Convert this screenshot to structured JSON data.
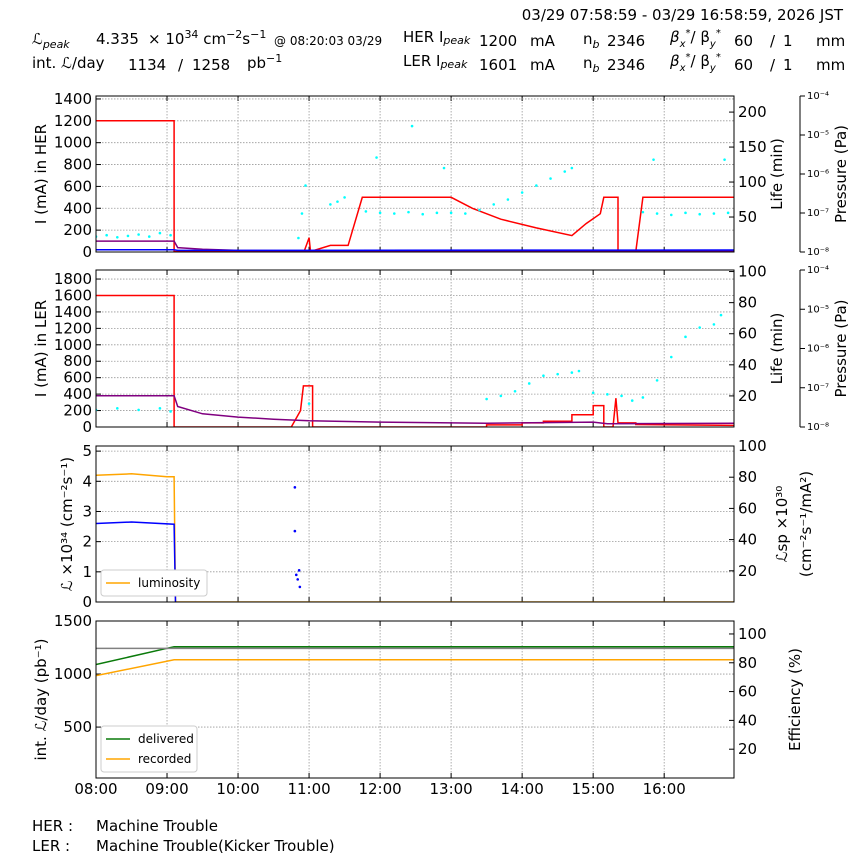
{
  "header": {
    "timespan": "03/29 07:58:59 - 03/29 16:58:59, 2026 JST",
    "lpeak": {
      "symbol": "ℒ",
      "sub": "peak",
      "value": 4.335,
      "unit": [
        "× 10",
        "34",
        " cm",
        "−2",
        "s",
        "−1"
      ],
      "time": "@ 08:20:03 03/29"
    },
    "int_lumi": {
      "label": "int. ℒ/day",
      "value": 1134,
      "sep": "/",
      "value2": 1258,
      "unit": [
        "pb",
        "−1"
      ]
    },
    "her": {
      "label": "HER I",
      "sub": "peak",
      "current": 1200,
      "unit": "mA",
      "nb": [
        "n",
        "b"
      ],
      "bunches": 2346,
      "beta": [
        "β",
        "x",
        "*",
        "/ β",
        "y",
        "*"
      ],
      "beta_x": 60,
      "slash": "/",
      "beta_y": 1,
      "beta_unit": "mm"
    },
    "ler": {
      "label": "LER I",
      "sub": "peak",
      "current": 1601,
      "unit": "mA",
      "nb": [
        "n",
        "b"
      ],
      "bunches": 2346,
      "beta": [
        "β",
        "x",
        "*",
        "/ β",
        "y",
        "*"
      ],
      "beta_x": 60,
      "slash": "/",
      "beta_y": 1,
      "beta_unit": "mm"
    }
  },
  "chart_data": [
    {
      "type": "line",
      "ylabel": "I (mA) in HER",
      "y2label": "Life (min)",
      "y3label": "Pressure (Pa)",
      "grid": true,
      "xlim": [
        8,
        16.983
      ],
      "xticks": [
        8,
        9,
        10,
        11,
        12,
        13,
        14,
        15,
        16
      ],
      "ylim": [
        0,
        1427
      ],
      "yticks": [
        0,
        200,
        400,
        600,
        800,
        1000,
        1200,
        1400
      ],
      "y2lim": [
        0,
        223
      ],
      "y2ticks": [
        50,
        100,
        150,
        200
      ],
      "y3lim": [
        1e-08,
        0.0001
      ],
      "y3scale": "log",
      "y3ticks": [
        {
          "value": 1e-08,
          "label": "10⁻⁸"
        },
        {
          "value": 1e-07,
          "label": "10⁻⁷"
        },
        {
          "value": 1e-06,
          "label": "10⁻⁶"
        },
        {
          "value": 1e-05,
          "label": "10⁻⁵"
        },
        {
          "value": 0.0001,
          "label": "10⁻⁴"
        }
      ],
      "series": [
        {
          "type": "line",
          "color": "#ff0000",
          "x": [
            8,
            9.1,
            9.1,
            10.93,
            11.0,
            11.02,
            11.3,
            11.55,
            11.75,
            13.0,
            13.3,
            13.7,
            14.2,
            14.7,
            14.9,
            15.1,
            15.15,
            15.35,
            15.35,
            15.6,
            15.7,
            16.98
          ],
          "values": [
            1200,
            1200,
            5,
            5,
            130,
            5,
            60,
            60,
            500,
            500,
            400,
            300,
            220,
            150,
            260,
            350,
            500,
            500,
            5,
            5,
            500,
            500
          ]
        },
        {
          "type": "line",
          "color": "#800080",
          "x": [
            8,
            9.1,
            9.15,
            9.5,
            10,
            11,
            13,
            16.98
          ],
          "values": [
            100,
            100,
            40,
            25,
            15,
            12,
            12,
            12
          ]
        },
        {
          "type": "line",
          "color": "#0000ff",
          "x": [
            8,
            9.1,
            9.15,
            16.98
          ],
          "values": [
            20,
            20,
            15,
            18
          ]
        },
        {
          "type": "scatter",
          "axis": "y2",
          "color": "#00ffff",
          "x": [
            8.0,
            8.15,
            8.3,
            8.45,
            8.6,
            8.75,
            8.9,
            9.05,
            10.85,
            10.9,
            10.95,
            11.3,
            11.4,
            11.5,
            11.8,
            12.0,
            12.2,
            12.4,
            12.6,
            12.8,
            13.0,
            13.2,
            13.4,
            13.6,
            13.8,
            14.0,
            14.2,
            14.4,
            14.6,
            14.7,
            15.7,
            15.9,
            16.1,
            16.3,
            16.5,
            16.7,
            16.9,
            11.95,
            12.45,
            12.9,
            15.85,
            16.85
          ],
          "values": [
            22,
            24,
            21,
            23,
            25,
            22,
            27,
            24,
            20,
            55,
            95,
            68,
            72,
            78,
            58,
            56,
            55,
            57,
            54,
            56,
            56,
            55,
            60,
            68,
            75,
            85,
            95,
            105,
            115,
            120,
            57,
            55,
            53,
            56,
            54,
            55,
            56,
            135,
            180,
            120,
            132,
            132
          ]
        }
      ]
    },
    {
      "type": "line",
      "ylabel": "I (mA) in LER",
      "y2label": "Life (min)",
      "y3label": "Pressure (Pa)",
      "grid": true,
      "xlim": [
        8,
        16.983
      ],
      "xticks": [
        8,
        9,
        10,
        11,
        12,
        13,
        14,
        15,
        16
      ],
      "ylim": [
        0,
        1910
      ],
      "yticks": [
        0,
        200,
        400,
        600,
        800,
        1000,
        1200,
        1400,
        1600,
        1800
      ],
      "y2lim": [
        0,
        101
      ],
      "y2ticks": [
        20,
        40,
        60,
        80,
        100
      ],
      "y3lim": [
        1e-08,
        0.0001
      ],
      "y3scale": "log",
      "y3ticks": [
        {
          "value": 1e-08,
          "label": "10⁻⁸"
        },
        {
          "value": 1e-07,
          "label": "10⁻⁷"
        },
        {
          "value": 1e-06,
          "label": "10⁻⁶"
        },
        {
          "value": 1e-05,
          "label": "10⁻⁵"
        },
        {
          "value": 0.0001,
          "label": "10⁻⁴"
        }
      ],
      "series": [
        {
          "type": "line",
          "color": "#ff0000",
          "x": [
            8,
            9.1,
            9.1,
            10.75,
            10.88,
            10.92,
            11.05,
            11.05,
            13.5,
            13.5,
            14.0,
            14.0,
            14.3,
            14.3,
            14.7,
            14.7,
            15.0,
            15.0,
            15.15,
            15.15,
            15.28,
            15.32,
            15.35,
            15.6,
            15.6,
            16.98
          ],
          "values": [
            1600,
            1600,
            0,
            0,
            200,
            500,
            500,
            0,
            0,
            25,
            25,
            50,
            50,
            70,
            70,
            150,
            150,
            260,
            260,
            0,
            0,
            350,
            50,
            50,
            30,
            20
          ]
        },
        {
          "type": "line",
          "color": "#800080",
          "x": [
            8,
            9.1,
            9.15,
            9.5,
            10,
            10.5,
            11,
            12,
            13.5,
            15,
            15.2,
            16.98
          ],
          "values": [
            380,
            380,
            250,
            160,
            120,
            95,
            75,
            60,
            45,
            60,
            40,
            45
          ]
        },
        {
          "type": "scatter",
          "axis": "y2",
          "color": "#00ffff",
          "x": [
            8.0,
            8.3,
            8.6,
            8.9,
            9.05,
            11.0,
            13.5,
            13.7,
            13.9,
            14.1,
            14.3,
            14.5,
            14.7,
            14.8,
            15.0,
            15.2,
            15.4,
            15.55,
            15.7,
            15.9,
            16.1,
            16.3,
            16.5,
            16.7,
            16.8
          ],
          "values": [
            11,
            12,
            11,
            12,
            10,
            15,
            18,
            20,
            23,
            28,
            33,
            34,
            35,
            36,
            22,
            21,
            20,
            17,
            19,
            30,
            45,
            58,
            64,
            66,
            72
          ]
        }
      ]
    },
    {
      "type": "line",
      "ylabel": "ℒ ×10³⁴ (cm⁻²s⁻¹)",
      "y2label": [
        "ℒsp ×10³⁰",
        "(cm⁻²s⁻¹/mA²)"
      ],
      "grid": true,
      "legend": "lower left",
      "xlim": [
        8,
        16.983
      ],
      "xticks": [
        8,
        9,
        10,
        11,
        12,
        13,
        14,
        15,
        16
      ],
      "ylim": [
        0,
        5.17
      ],
      "yticks": [
        0,
        1,
        2,
        3,
        4,
        5
      ],
      "y2lim": [
        0,
        100
      ],
      "y2ticks": [
        20,
        40,
        60,
        80,
        100
      ],
      "series": [
        {
          "type": "line",
          "name": "luminosity",
          "color": "#ffa500",
          "x": [
            8,
            8.5,
            9.0,
            9.1,
            9.12,
            16.98
          ],
          "values": [
            4.2,
            4.25,
            4.15,
            4.15,
            0,
            0
          ]
        },
        {
          "type": "line",
          "color": "#0000ff",
          "x": [
            8,
            8.5,
            9.1,
            9.12
          ],
          "values": [
            2.6,
            2.65,
            2.58,
            0
          ]
        },
        {
          "type": "scatter",
          "color": "#0000ff",
          "x": [
            10.8,
            10.8,
            10.82,
            10.84,
            10.86,
            10.87
          ],
          "values": [
            3.8,
            2.35,
            0.9,
            0.75,
            1.05,
            0.5
          ]
        }
      ]
    },
    {
      "type": "line",
      "ylabel": "int. ℒ/day (pb⁻¹)",
      "y2label": "Efficiency (%)",
      "grid": true,
      "legend": "lower left",
      "xlim": [
        8,
        16.983
      ],
      "xticks": [
        {
          "value": 8,
          "label": "08:00"
        },
        {
          "value": 9,
          "label": "09:00"
        },
        {
          "value": 10,
          "label": "10:00"
        },
        {
          "value": 11,
          "label": "11:00"
        },
        {
          "value": 12,
          "label": "12:00"
        },
        {
          "value": 13,
          "label": "13:00"
        },
        {
          "value": 14,
          "label": "14:00"
        },
        {
          "value": 15,
          "label": "15:00"
        },
        {
          "value": 16,
          "label": "16:00"
        }
      ],
      "ylim": [
        20,
        1500
      ],
      "yticks": [
        500,
        1000,
        1500
      ],
      "y2lim": [
        0,
        109
      ],
      "y2ticks": [
        20,
        40,
        60,
        80,
        100
      ],
      "series": [
        {
          "type": "line",
          "name": "delivered",
          "color": "#0a7a0a",
          "x": [
            8,
            9.1,
            16.98
          ],
          "values": [
            1090,
            1258,
            1258
          ]
        },
        {
          "type": "line",
          "name": "recorded",
          "color": "#ffa500",
          "x": [
            8,
            9.1,
            16.98
          ],
          "values": [
            985,
            1134,
            1134
          ]
        },
        {
          "type": "line",
          "axis": "y2",
          "color": "#808080",
          "x": [
            8,
            16.98
          ],
          "values": [
            90,
            90
          ]
        }
      ]
    }
  ],
  "footer": {
    "her_label": "HER :",
    "her_status": "Machine Trouble",
    "ler_label": "LER :",
    "ler_status": "Machine Trouble(Kicker Trouble)"
  }
}
